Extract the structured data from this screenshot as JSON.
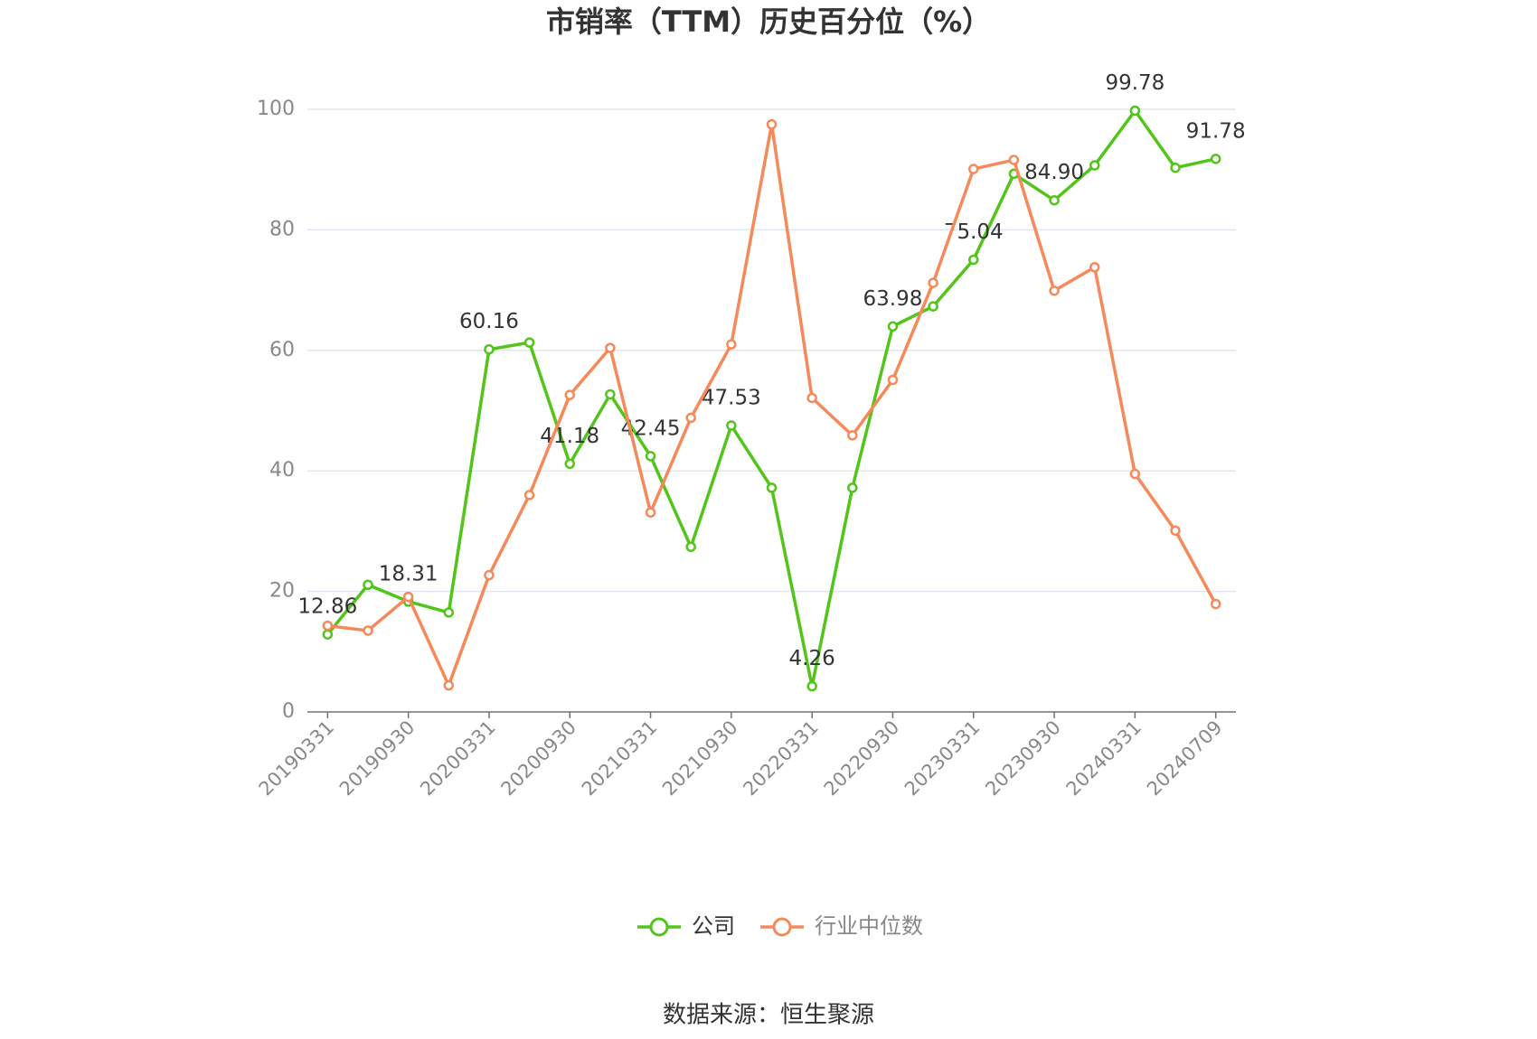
{
  "chart_data": {
    "type": "line",
    "title": "市销率（TTM）历史百分位（%）",
    "source": "数据来源：恒生聚源",
    "categories": [
      "20190331",
      null,
      "20190930",
      null,
      "20200331",
      null,
      "20200930",
      null,
      "20210331",
      null,
      "20210930",
      null,
      "20220331",
      null,
      "20220930",
      null,
      "20230331",
      null,
      "20230930",
      null,
      "20240331",
      null,
      "20240709"
    ],
    "series": [
      {
        "name": "公司",
        "color": "#52c41a",
        "values": [
          12.86,
          21.1,
          18.31,
          16.5,
          60.16,
          61.3,
          41.18,
          52.7,
          42.45,
          27.4,
          47.53,
          37.2,
          4.26,
          37.2,
          63.98,
          67.3,
          75.04,
          89.3,
          84.9,
          90.7,
          99.78,
          90.3,
          91.78
        ],
        "value_labels": [
          "12.86",
          null,
          "18.31",
          null,
          "60.16",
          null,
          "41.18",
          null,
          "42.45",
          null,
          "47.53",
          null,
          "4.26",
          null,
          "63.98",
          null,
          "75.04",
          null,
          "84.90",
          null,
          "99.78",
          null,
          "91.78"
        ]
      },
      {
        "name": "行业中位数",
        "color": "#f5895a",
        "values": [
          14.3,
          13.5,
          19.1,
          4.4,
          22.7,
          36.0,
          52.6,
          60.4,
          33.1,
          48.8,
          61.0,
          97.5,
          52.1,
          45.9,
          55.1,
          71.2,
          90.1,
          91.6,
          69.9,
          73.8,
          39.5,
          30.1,
          17.9
        ]
      }
    ],
    "ylim": [
      0,
      100
    ],
    "yticks": [
      0,
      20,
      40,
      60,
      80,
      100
    ],
    "grid": true
  }
}
